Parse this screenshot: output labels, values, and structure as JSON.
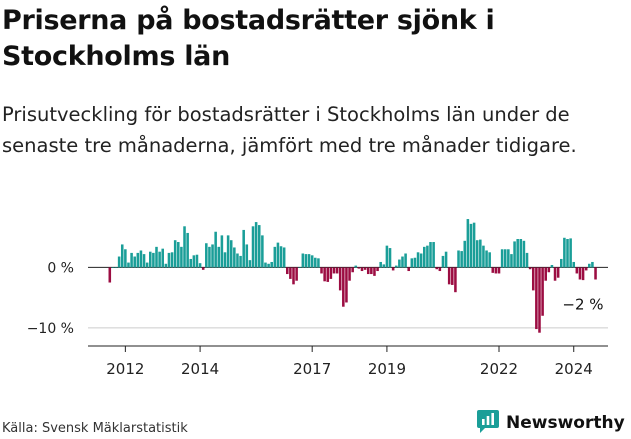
{
  "title": "Priserna på bostadsrätter sjönk i Stockholms län",
  "subtitle": "Prisutveckling för bostadsrätter i Stockholms län under de senaste tre månaderna, jämfört med tre månader tidigare.",
  "source": "Källa: Svensk Mäklarstatistik",
  "brand": {
    "name": "Newsworthy",
    "icon": "newsworthy-logo-icon"
  },
  "colors": {
    "positive": "#1a9e98",
    "negative": "#9c0d42",
    "brand": "#1a9e98"
  },
  "chart_data": {
    "type": "bar",
    "title": "Priserna på bostadsrätter sjönk i Stockholms län",
    "xlabel": "",
    "ylabel": "",
    "unit": "%",
    "x_start": "2011-08",
    "x_range": [
      2011.0,
      2024.917
    ],
    "ylim": [
      -13,
      9
    ],
    "yticks": [
      0,
      -10
    ],
    "ytick_labels": [
      "0 %",
      "−10 %"
    ],
    "xticks": [
      2012,
      2014,
      2017,
      2019,
      2022,
      2024
    ],
    "xtick_labels": [
      "2012",
      "2014",
      "2017",
      "2019",
      "2022",
      "2024"
    ],
    "last_value_label": "−2 %",
    "values": [
      -2.5,
      0,
      0,
      1.8,
      3.8,
      3,
      0.8,
      2.4,
      1.8,
      2.4,
      2.8,
      2.2,
      0.8,
      2.6,
      2.4,
      3.4,
      2.6,
      3.1,
      0.6,
      2.4,
      2.5,
      4.5,
      4.2,
      3.4,
      6.8,
      5.7,
      1.4,
      2,
      2.1,
      0.7,
      -0.4,
      4,
      3.4,
      3.8,
      5.9,
      3.4,
      5.3,
      2.5,
      5.3,
      4.5,
      3.3,
      2.3,
      1.9,
      6.2,
      3.8,
      1.2,
      6.8,
      7.5,
      7,
      5.3,
      0.8,
      0.6,
      0.9,
      3.4,
      4.1,
      3.5,
      3.3,
      -1.1,
      -1.9,
      -2.8,
      -2.2,
      0,
      2.3,
      2.2,
      2.2,
      2,
      1.6,
      1.5,
      -1,
      -2.3,
      -2.4,
      -1.9,
      -1,
      -1,
      -3.8,
      -6.5,
      -5.8,
      -2.2,
      -0.8,
      0.3,
      -0.2,
      -0.6,
      -0.4,
      -1.1,
      -1.1,
      -1.4,
      -0.6,
      0.9,
      0.5,
      3.6,
      3.2,
      -0.5,
      0.3,
      1.3,
      1.8,
      2.3,
      -0.6,
      1.5,
      1.6,
      2.5,
      2.3,
      3.4,
      3.6,
      4.2,
      4.2,
      -0.3,
      -0.6,
      1.9,
      2.6,
      -2.8,
      -2.9,
      -4.1,
      2.8,
      2.7,
      4.4,
      8,
      7.2,
      7.4,
      4.5,
      4.6,
      3.6,
      2.8,
      2.5,
      -0.9,
      -1,
      -1,
      3,
      3,
      3,
      2.2,
      4.3,
      4.7,
      4.7,
      4.4,
      2.4,
      -0.3,
      -3.8,
      -10.2,
      -10.8,
      -8,
      -2.2,
      -0.8,
      0.4,
      -2.2,
      -1.7,
      1.4,
      4.9,
      4.7,
      4.8,
      0.9,
      -1,
      -2,
      -2.1,
      -0.5,
      0.6,
      0.9,
      -2
    ]
  }
}
